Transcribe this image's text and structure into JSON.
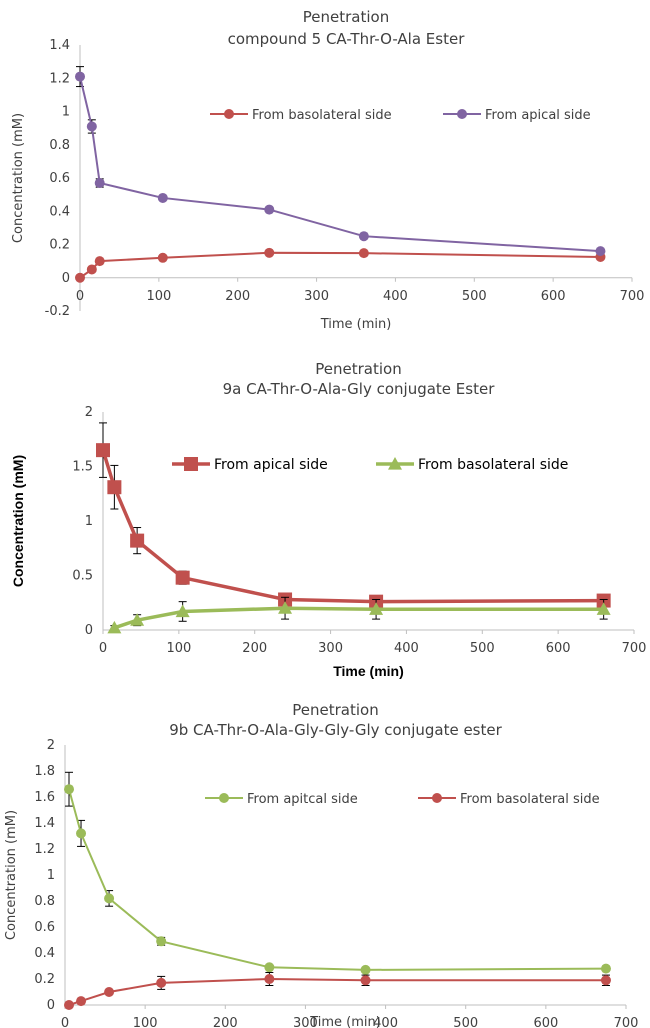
{
  "chart_data": [
    {
      "type": "line",
      "title": "Penetration",
      "subtitle": "compound 5 CA-Thr-O-Ala Ester",
      "xlabel": "Time (min)",
      "ylabel": "Concentration (mM)",
      "xlim": [
        0,
        700
      ],
      "ylim": [
        -0.2,
        1.4
      ],
      "xticks": [
        "0",
        "100",
        "200",
        "300",
        "400",
        "500",
        "600",
        "700"
      ],
      "yticks": [
        "-0.2",
        "0",
        "0.2",
        "0.4",
        "0.6",
        "0.8",
        "1",
        "1.2",
        "1.4"
      ],
      "legend_position": "top-right",
      "series": [
        {
          "name": "From basolateral side",
          "color": "#C0504D",
          "marker": "circle",
          "x": [
            0,
            15,
            25,
            105,
            240,
            360,
            660
          ],
          "y": [
            0.0,
            0.05,
            0.1,
            0.12,
            0.15,
            0.148,
            0.125
          ],
          "err": [
            0,
            0,
            0,
            0,
            0,
            0,
            0
          ]
        },
        {
          "name": "From apical side",
          "color": "#8064A2",
          "marker": "circle",
          "x": [
            0,
            15,
            25,
            105,
            240,
            360,
            660
          ],
          "y": [
            1.21,
            0.91,
            0.57,
            0.48,
            0.41,
            0.25,
            0.16
          ],
          "err": [
            0.06,
            0.04,
            0.025,
            0,
            0,
            0,
            0
          ]
        }
      ]
    },
    {
      "type": "line",
      "title": "Penetration",
      "subtitle": "9a CA-Thr-O-Ala-Gly conjugate Ester",
      "xlabel": "Time (min)",
      "ylabel": "Concentration (mM)",
      "xlim": [
        0,
        700
      ],
      "ylim": [
        0,
        2
      ],
      "xticks": [
        "0",
        "100",
        "200",
        "300",
        "400",
        "500",
        "600",
        "700"
      ],
      "yticks": [
        "0",
        "0.5",
        "1",
        "1.5",
        "2"
      ],
      "legend_position": "top-right",
      "series": [
        {
          "name": "From apical side",
          "color": "#C0504D",
          "marker": "square",
          "x": [
            0,
            15,
            45,
            105,
            240,
            360,
            660
          ],
          "y": [
            1.65,
            1.31,
            0.82,
            0.48,
            0.28,
            0.26,
            0.27
          ],
          "err": [
            0.25,
            0.2,
            0.12,
            0.06,
            0.03,
            0.03,
            0.03
          ]
        },
        {
          "name": "From basolateral side",
          "color": "#9BBB59",
          "marker": "triangle",
          "x": [
            15,
            45,
            105,
            240,
            360,
            660
          ],
          "y": [
            0.02,
            0.09,
            0.17,
            0.2,
            0.19,
            0.19
          ],
          "err": [
            0.02,
            0.05,
            0.09,
            0.1,
            0.09,
            0.09
          ]
        }
      ]
    },
    {
      "type": "line",
      "title": "Penetration",
      "subtitle": "9b CA-Thr-O-Ala-Gly-Gly-Gly conjugate ester",
      "xlabel": "Time (min)",
      "ylabel": "Concentration (mM)",
      "xlim": [
        0,
        700
      ],
      "ylim": [
        0,
        2
      ],
      "xticks": [
        "0",
        "100",
        "200",
        "300",
        "400",
        "500",
        "600",
        "700"
      ],
      "yticks": [
        "0",
        "0.2",
        "0.4",
        "0.6",
        "0.8",
        "1",
        "1.2",
        "1.4",
        "1.6",
        "1.8",
        "2"
      ],
      "legend_position": "top-right",
      "series": [
        {
          "name": "From apitcal side",
          "color": "#9BBB59",
          "marker": "circle",
          "x": [
            5,
            20,
            55,
            120,
            255,
            375,
            675
          ],
          "y": [
            1.66,
            1.32,
            0.82,
            0.49,
            0.29,
            0.27,
            0.28
          ],
          "err": [
            0.13,
            0.1,
            0.06,
            0.03,
            0,
            0,
            0
          ]
        },
        {
          "name": "From basolateral side",
          "color": "#C0504D",
          "marker": "circle",
          "x": [
            5,
            20,
            55,
            120,
            255,
            375,
            675
          ],
          "y": [
            0.0,
            0.03,
            0.1,
            0.17,
            0.2,
            0.19,
            0.19
          ],
          "err": [
            0,
            0,
            0,
            0.05,
            0.05,
            0.04,
            0.04
          ]
        }
      ]
    }
  ]
}
